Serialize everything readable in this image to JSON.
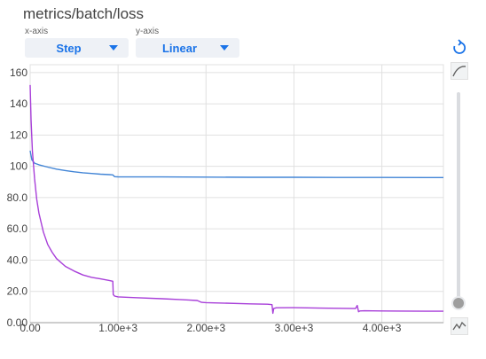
{
  "header": {
    "title": "metrics/batch/loss",
    "xaxis_label": "x-axis",
    "yaxis_label": "y-axis",
    "xaxis_value": "Step",
    "yaxis_value": "Linear"
  },
  "colors": {
    "accent": "#1a73e8",
    "series_blue": "#4285d6",
    "series_purple": "#a83fd9",
    "grid": "#e0e0e0"
  },
  "icons": [
    "reset-icon",
    "smoothing-icon",
    "smoothing-slider",
    "raw-data-icon"
  ],
  "chart_data": {
    "type": "line",
    "xlim": [
      0,
      4700
    ],
    "ylim": [
      0,
      165
    ],
    "grid": true,
    "x_ticks": [
      0,
      1000,
      2000,
      3000,
      4000
    ],
    "x_tick_labels": [
      "0.00",
      "1.00e+3",
      "2.00e+3",
      "3.00e+3",
      "4.00e+3"
    ],
    "y_ticks": [
      0,
      20,
      40,
      60,
      80,
      100,
      120,
      140,
      160
    ],
    "y_tick_labels": [
      "0.00",
      "20.0",
      "40.0",
      "60.0",
      "80.0",
      "100",
      "120",
      "140",
      "160"
    ],
    "series": [
      {
        "color": "#4285d6",
        "x": [
          0,
          20,
          50,
          100,
          200,
          300,
          400,
          500,
          600,
          700,
          800,
          900,
          940,
          960,
          1000,
          1500,
          2000,
          2500,
          3000,
          3500,
          4000,
          4500,
          4700
        ],
        "y": [
          110,
          104,
          102,
          101,
          99.5,
          98.2,
          97.3,
          96.5,
          95.9,
          95.4,
          95,
          94.7,
          94.5,
          93.4,
          93.3,
          93.2,
          93.1,
          93,
          93,
          92.9,
          92.9,
          92.8,
          92.8
        ]
      },
      {
        "color": "#a83fd9",
        "x": [
          0,
          10,
          25,
          50,
          75,
          100,
          150,
          200,
          250,
          300,
          400,
          500,
          600,
          700,
          800,
          900,
          940,
          945,
          960,
          1000,
          1200,
          1500,
          1700,
          1800,
          1900,
          1950,
          2000,
          2500,
          2700,
          2750,
          2760,
          2770,
          2800,
          3000,
          3300,
          3500,
          3700,
          3720,
          3735,
          3750,
          3800,
          4000,
          4200,
          4500,
          4700
        ],
        "y": [
          152,
          130,
          110,
          92,
          79,
          70,
          58,
          50,
          45,
          41,
          36,
          33,
          30.5,
          29,
          28,
          27,
          26.5,
          18,
          17,
          16.5,
          16,
          15.3,
          14.8,
          14.5,
          14.2,
          13,
          12.8,
          12,
          11.8,
          11.5,
          6,
          9,
          9.5,
          9.6,
          9.3,
          9.2,
          9,
          11,
          7,
          7.5,
          7.6,
          7.5,
          7.4,
          7.3,
          7.3
        ]
      }
    ]
  }
}
